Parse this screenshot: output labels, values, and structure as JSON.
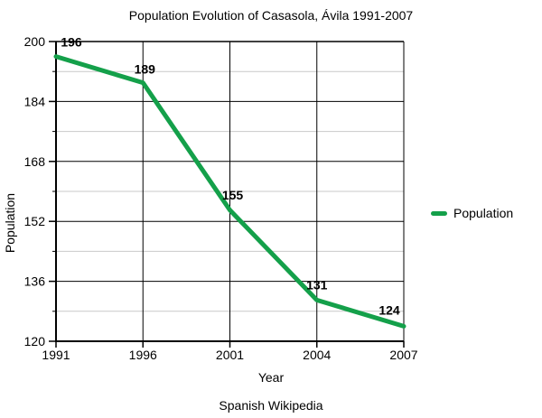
{
  "chart_data": {
    "type": "line",
    "title": "Population Evolution of Casasola, Ávila 1991-2007",
    "categories": [
      "1991",
      "1996",
      "2001",
      "2004",
      "2007"
    ],
    "series": [
      {
        "name": "Population",
        "values": [
          196,
          189,
          155,
          131,
          124
        ],
        "color": "#14a04a"
      }
    ],
    "xlabel": "Year",
    "ylabel": "Population",
    "ylim": [
      120,
      200
    ],
    "yticks": [
      120,
      136,
      152,
      168,
      184,
      200
    ],
    "y_minor_ticks": [
      128,
      144,
      160,
      176,
      192
    ],
    "grid": true,
    "legend_position": "right",
    "data_labels_visible": true,
    "source": "Spanish Wikipedia",
    "colors": {
      "line": "#14a04a",
      "major_grid": "#000000",
      "minor_grid": "#c9c9c9",
      "text": "#000000",
      "background": "#ffffff"
    }
  }
}
